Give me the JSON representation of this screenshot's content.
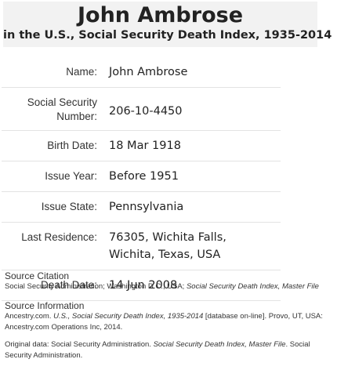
{
  "header": {
    "name": "John Ambrose",
    "collection": "in the U.S., Social Security Death Index, 1935-2014"
  },
  "record": {
    "rows": [
      {
        "label": "Name:",
        "value": "John Ambrose"
      },
      {
        "label": "Social Security Number:",
        "value": "206-10-4450"
      },
      {
        "label": "Birth Date:",
        "value": "18 Mar 1918"
      },
      {
        "label": "Issue Year:",
        "value": "Before 1951"
      },
      {
        "label": "Issue State:",
        "value": "Pennsylvania"
      },
      {
        "label": "Last Residence:",
        "value": "76305, Wichita Falls, Wichita, Texas, USA"
      },
      {
        "label": "Death Date:",
        "value": "14 Jun 2008"
      }
    ]
  },
  "source": {
    "citation_heading": "Source Citation",
    "citation_text_a": "Social Security Administration; Washington D.C., USA; ",
    "citation_text_b": "Social Security Death Index, Master File",
    "info_heading": "Source Information",
    "info_a": "Ancestry.com. ",
    "info_b": "U.S., Social Security Death Index, 1935-2014",
    "info_c": " [database on-line]. Provo, UT, USA: Ancestry.com Operations Inc, 2014.",
    "original_a": "Original data: Social Security Administration. ",
    "original_b": "Social Security Death Index, Master File",
    "original_c": ". Social Security Administration."
  }
}
